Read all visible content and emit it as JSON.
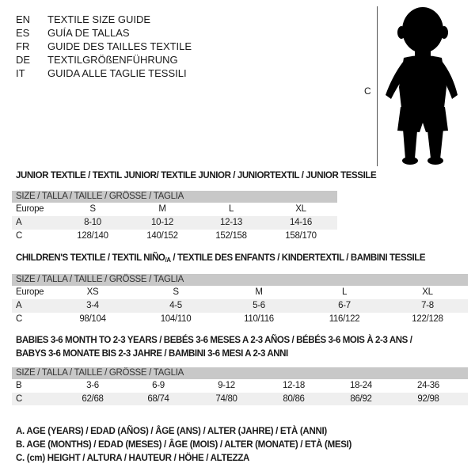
{
  "titles": [
    {
      "code": "EN",
      "text": "TEXTILE SIZE GUIDE"
    },
    {
      "code": "ES",
      "text": "GUÍA DE TALLAS"
    },
    {
      "code": "FR",
      "text": "GUIDE DES TAILLES TEXTILE"
    },
    {
      "code": "DE",
      "text": "TEXTILGRÖßENFÜHRUNG"
    },
    {
      "code": "IT",
      "text": "GUIDA ALLE TAGLIE TESSILI"
    }
  ],
  "figure": {
    "measure_label": "C",
    "icon": "child-silhouette"
  },
  "junior": {
    "title": "JUNIOR TEXTILE / TEXTIL JUNIOR/ TEXTILE JUNIOR / JUNIORTEXTIL / JUNIOR TESSILE",
    "header": "SIZE / TALLA / TAILLE / GRÖSSE / TAGLIA",
    "rows": [
      {
        "label": "Europe",
        "cells": [
          "S",
          "M",
          "L",
          "XL"
        ]
      },
      {
        "label": "A",
        "cells": [
          "8-10",
          "10-12",
          "12-13",
          "14-16"
        ]
      },
      {
        "label": "C",
        "cells": [
          "128/140",
          "140/152",
          "152/158",
          "158/170"
        ]
      }
    ]
  },
  "children": {
    "title_a": "CHILDREN'S TEXTILE / TEXTIL NIÑO",
    "title_sub": "/A",
    "title_b": " / TEXTILE DES ENFANTS / KINDERTEXTIL / BAMBINI TESSILE",
    "header": "SIZE / TALLA / TAILLE / GRÖSSE / TAGLIA",
    "rows": [
      {
        "label": "Europe",
        "cells": [
          "XS",
          "S",
          "M",
          "L",
          "XL"
        ]
      },
      {
        "label": "A",
        "cells": [
          "3-4",
          "4-5",
          "5-6",
          "6-7",
          "7-8"
        ]
      },
      {
        "label": "C",
        "cells": [
          "98/104",
          "104/110",
          "110/116",
          "116/122",
          "122/128"
        ]
      }
    ]
  },
  "babies": {
    "title_line1": "BABIES 3-6 MONTH TO 2-3 YEARS / BEBÉS 3-6 MESES A 2-3 AÑOS / BÉBÉS 3-6 MOIS À 2-3 ANS /",
    "title_line2": "BABYS 3-6 MONATE BIS 2-3 JAHRE / BAMBINI 3-6 MESI A 2-3 ANNI",
    "header": "SIZE / TALLA / TAILLE / GRÖSSE / TAGLIA",
    "rows": [
      {
        "label": "B",
        "cells": [
          "3-6",
          "6-9",
          "9-12",
          "12-18",
          "18-24",
          "24-36"
        ]
      },
      {
        "label": "C",
        "cells": [
          "62/68",
          "68/74",
          "74/80",
          "80/86",
          "86/92",
          "92/98"
        ]
      }
    ]
  },
  "legend": [
    "A. AGE (YEARS) / EDAD (AÑOS) / ÂGE (ANS) / ALTER (JAHRE) / ETÀ (ANNI)",
    "B. AGE (MONTHS) / EDAD (MESES) / ÂGE (MOIS) / ALTER (MONATE) / ETÀ (MESI)",
    "C. (cm) HEIGHT / ALTURA / HAUTEUR / HÖHE / ALTEZZA"
  ]
}
